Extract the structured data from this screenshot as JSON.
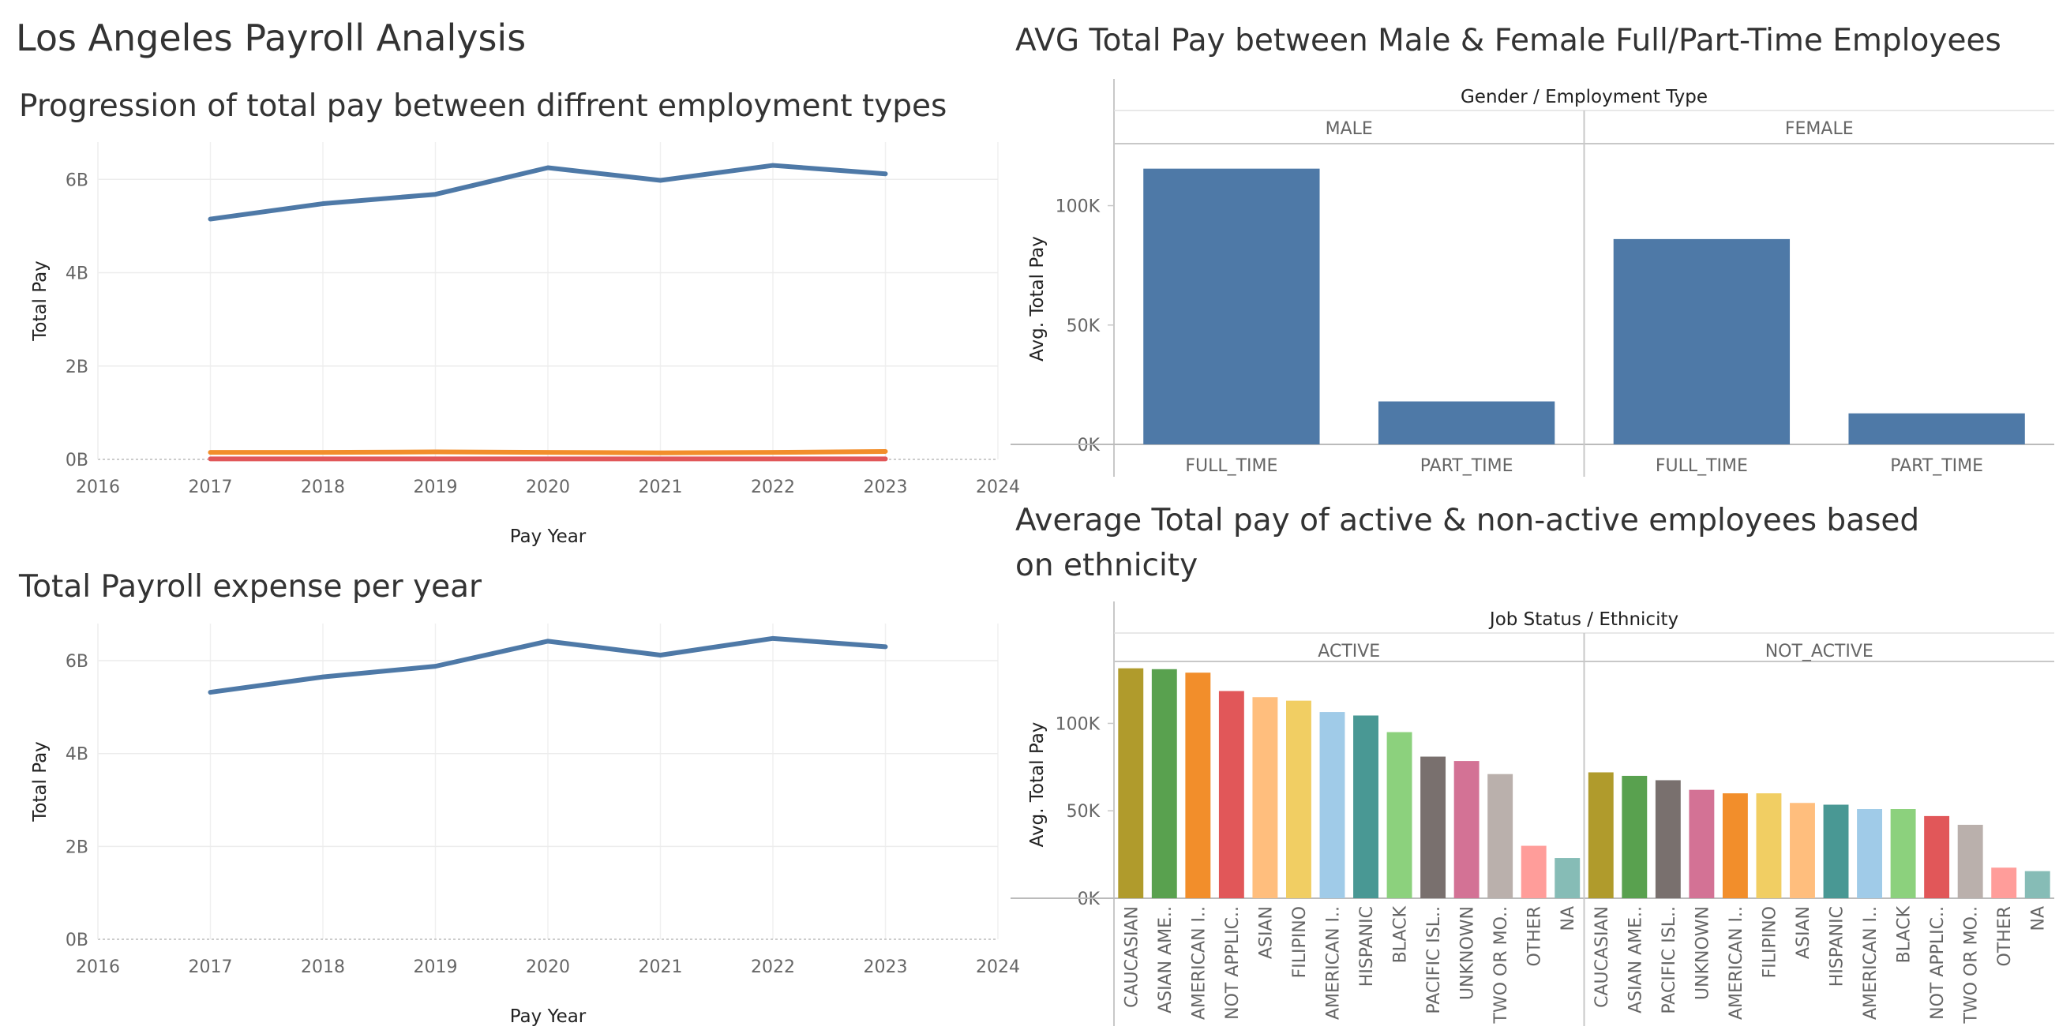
{
  "dashboard_title": "Los Angeles Payroll Analysis",
  "chart_data": [
    {
      "id": "progression",
      "type": "line",
      "title": "Progression of total pay between diffrent employment types",
      "xlabel": "Pay Year",
      "ylabel": "Total Pay",
      "x_ticks": [
        "2016",
        "2017",
        "2018",
        "2019",
        "2020",
        "2021",
        "2022",
        "2023",
        "2024"
      ],
      "xlim": [
        2016,
        2024
      ],
      "y_ticks": [
        "0B",
        "2B",
        "4B",
        "6B"
      ],
      "ylim": [
        0,
        6.8
      ],
      "y_unit": "billions",
      "grid": true,
      "series": [
        {
          "color": "#4e79a7",
          "x": [
            2017,
            2018,
            2019,
            2020,
            2021,
            2022,
            2023
          ],
          "values": [
            5.15,
            5.48,
            5.68,
            6.25,
            5.98,
            6.3,
            6.12
          ]
        },
        {
          "color": "#f28e2b",
          "x": [
            2017,
            2018,
            2019,
            2020,
            2021,
            2022,
            2023
          ],
          "values": [
            0.15,
            0.15,
            0.16,
            0.15,
            0.14,
            0.15,
            0.17
          ]
        },
        {
          "color": "#e15759",
          "x": [
            2017,
            2018,
            2019,
            2020,
            2021,
            2022,
            2023
          ],
          "values": [
            0.01,
            0.01,
            0.01,
            0.01,
            0.01,
            0.01,
            0.01
          ]
        }
      ]
    },
    {
      "id": "total_payroll",
      "type": "line",
      "title": "Total Payroll expense per year",
      "xlabel": "Pay Year",
      "ylabel": "Total Pay",
      "x_ticks": [
        "2016",
        "2017",
        "2018",
        "2019",
        "2020",
        "2021",
        "2022",
        "2023",
        "2024"
      ],
      "xlim": [
        2016,
        2024
      ],
      "y_ticks": [
        "0B",
        "2B",
        "4B",
        "6B"
      ],
      "ylim": [
        0,
        6.8
      ],
      "y_unit": "billions",
      "grid": true,
      "series": [
        {
          "color": "#4e79a7",
          "x": [
            2017,
            2018,
            2019,
            2020,
            2021,
            2022,
            2023
          ],
          "values": [
            5.32,
            5.65,
            5.88,
            6.42,
            6.12,
            6.48,
            6.3
          ]
        }
      ]
    },
    {
      "id": "gender_employment",
      "type": "bar",
      "title": "AVG Total Pay between Male & Female Full/Part-Time Employees",
      "header": "Gender  /  Employment Type",
      "ylabel": "Avg. Total Pay",
      "y_ticks": [
        "0K",
        "50K",
        "100K"
      ],
      "ylim": [
        0,
        122000
      ],
      "panes": [
        {
          "label": "MALE",
          "categories": [
            "FULL_TIME",
            "PART_TIME"
          ],
          "values": [
            115500,
            18000
          ],
          "colors": [
            "#4e79a7",
            "#4e79a7"
          ]
        },
        {
          "label": "FEMALE",
          "categories": [
            "FULL_TIME",
            "PART_TIME"
          ],
          "values": [
            86000,
            13000
          ],
          "colors": [
            "#4e79a7",
            "#4e79a7"
          ]
        }
      ]
    },
    {
      "id": "status_ethnicity",
      "type": "bar",
      "title": "Average Total pay of active & non-active employees based on ethnicity",
      "header": "Job Status  /  Ethnicity",
      "ylabel": "Avg. Total Pay",
      "y_ticks": [
        "0K",
        "50K",
        "100K"
      ],
      "ylim": [
        0,
        130000
      ],
      "panes": [
        {
          "label": "ACTIVE",
          "categories": [
            "CAUCASIAN",
            "ASIAN AME..",
            "AMERICAN I..",
            "NOT APPLIC..",
            "ASIAN",
            "FILIPINO",
            "AMERICAN I..",
            "HISPANIC",
            "BLACK",
            "PACIFIC ISL..",
            "UNKNOWN",
            "TWO OR MO..",
            "OTHER",
            "NA"
          ],
          "values": [
            131500,
            131000,
            129000,
            118500,
            115000,
            113000,
            106500,
            104500,
            95000,
            81000,
            78500,
            71000,
            30000,
            23000
          ],
          "colors": [
            "#b09b2c",
            "#59a14f",
            "#f28e2b",
            "#e15759",
            "#ffbe7d",
            "#f1ce63",
            "#a0cbe8",
            "#499894",
            "#8cd17d",
            "#79706e",
            "#d37295",
            "#bab0ac",
            "#ff9d9a",
            "#86bcb6"
          ]
        },
        {
          "label": "NOT_ACTIVE",
          "categories": [
            "CAUCASIAN",
            "ASIAN AME..",
            "PACIFIC ISL..",
            "UNKNOWN",
            "AMERICAN I..",
            "FILIPINO",
            "ASIAN",
            "HISPANIC",
            "AMERICAN I..",
            "BLACK",
            "NOT APPLIC..",
            "TWO OR MO..",
            "OTHER",
            "NA"
          ],
          "values": [
            72000,
            70000,
            67500,
            62000,
            60000,
            60000,
            54500,
            53500,
            51000,
            51000,
            47000,
            42000,
            17500,
            15500
          ],
          "colors": [
            "#b09b2c",
            "#59a14f",
            "#79706e",
            "#d37295",
            "#f28e2b",
            "#f1ce63",
            "#ffbe7d",
            "#499894",
            "#a0cbe8",
            "#8cd17d",
            "#e15759",
            "#bab0ac",
            "#ff9d9a",
            "#86bcb6"
          ]
        }
      ]
    }
  ]
}
